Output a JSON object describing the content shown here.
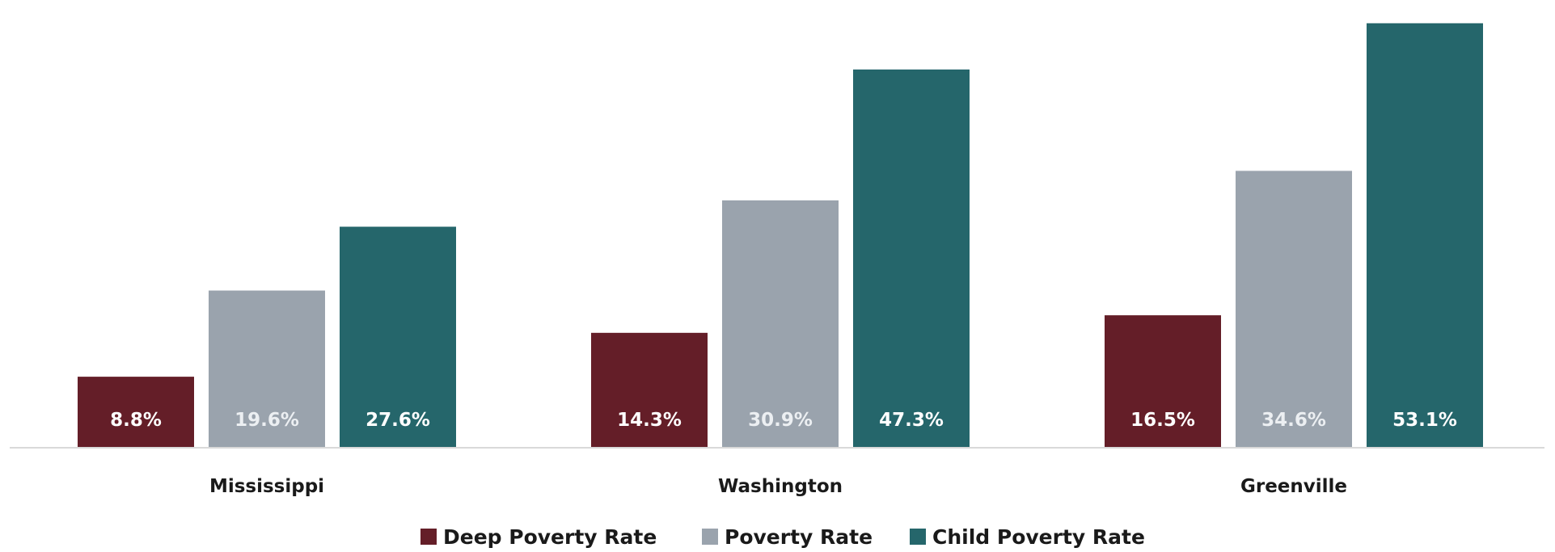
{
  "chart_data": {
    "type": "bar",
    "categories": [
      "Mississippi",
      "Washington",
      "Greenville"
    ],
    "series": [
      {
        "name": "Deep Poverty Rate",
        "values": [
          8.8,
          14.3,
          16.5
        ],
        "labels": [
          "8.8%",
          "14.3%",
          "16.5%"
        ],
        "color": "#641e28",
        "label_color": "#ffffff"
      },
      {
        "name": "Poverty Rate",
        "values": [
          19.6,
          30.9,
          34.6
        ],
        "labels": [
          "19.6%",
          "30.9%",
          "34.6%"
        ],
        "color": "#9aa3ad",
        "label_color": "#eceff2"
      },
      {
        "name": "Child Poverty Rate",
        "values": [
          27.6,
          47.3,
          53.1
        ],
        "labels": [
          "27.6%",
          "47.3%",
          "53.1%"
        ],
        "color": "#25666b",
        "label_color": "#ffffff"
      }
    ],
    "ylim": [
      0,
      55
    ],
    "grid": false,
    "legend_position": "bottom",
    "axis_color": "#d9d9d9"
  }
}
